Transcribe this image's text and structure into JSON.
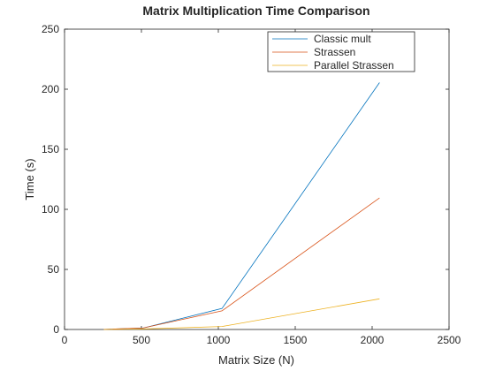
{
  "chart_data": {
    "type": "line",
    "title": "Matrix Multiplication Time Comparison",
    "xlabel": "Matrix Size (N)",
    "ylabel": "Time (s)",
    "xlim": [
      0,
      2500
    ],
    "ylim": [
      0,
      250
    ],
    "xticks": [
      0,
      500,
      1000,
      1500,
      2000,
      2500
    ],
    "yticks": [
      0,
      50,
      100,
      150,
      200,
      250
    ],
    "grid": false,
    "legend_position": "top-right",
    "x": [
      256,
      512,
      1024,
      2048
    ],
    "series": [
      {
        "name": "Classic mult",
        "color": "#0072bd",
        "values": [
          0.1,
          1.2,
          17.5,
          205.5
        ]
      },
      {
        "name": "Strassen",
        "color": "#d95319",
        "values": [
          0.1,
          1.3,
          15.5,
          109.5
        ]
      },
      {
        "name": "Parallel Strassen",
        "color": "#edb120",
        "values": [
          0.0,
          0.4,
          2.5,
          25.5
        ]
      }
    ]
  }
}
